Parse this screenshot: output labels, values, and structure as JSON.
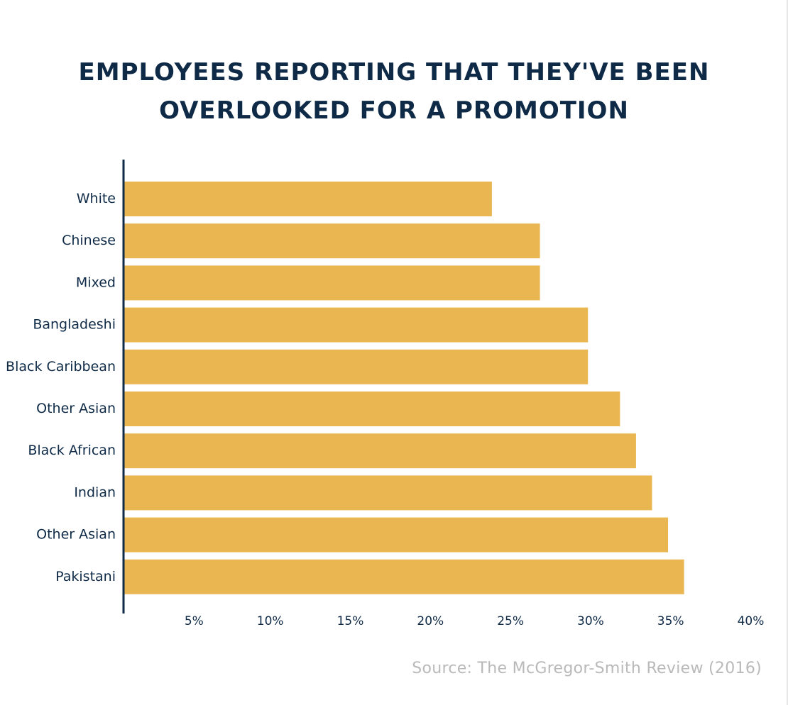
{
  "title_lines": [
    "EMPLOYEES REPORTING THAT THEY'VE BEEN",
    "OVERLOOKED FOR A PROMOTION"
  ],
  "source": "Source: The McGregor-Smith Review (2016)",
  "chart_data": {
    "type": "bar",
    "orientation": "horizontal",
    "categories": [
      "White",
      "Chinese",
      "Mixed",
      "Bangladeshi",
      "Black Caribbean",
      "Other Asian",
      "Black African",
      "Indian",
      "Other Asian",
      "Pakistani"
    ],
    "values": [
      23,
      26,
      26,
      29,
      29,
      31,
      32,
      33,
      34,
      35
    ],
    "xlim": [
      0,
      40
    ],
    "xticks": [
      5,
      10,
      15,
      20,
      25,
      30,
      35,
      40
    ],
    "xtick_labels": [
      "5%",
      "10%",
      "15%",
      "20%",
      "25%",
      "30%",
      "35%",
      "40%"
    ],
    "grid": false,
    "colors": {
      "bar": "#e9b652",
      "axis": "#0e2a47",
      "text": "#0e2a47"
    }
  }
}
